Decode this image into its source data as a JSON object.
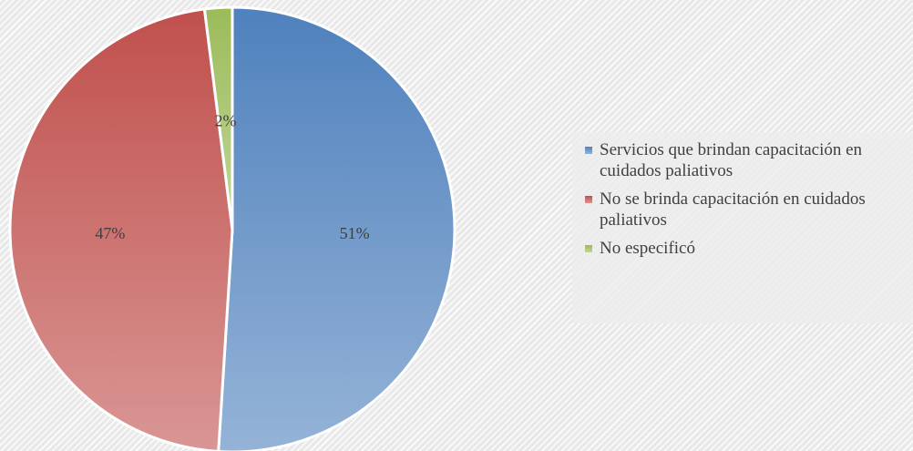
{
  "chart_data": {
    "type": "pie",
    "title": "",
    "start_angle_deg": 0,
    "direction": "clockwise",
    "labels_position": "inside",
    "legend_position": "right",
    "slices": [
      {
        "label": "Servicios que  brindan capacitación en cuidados paliativos",
        "value": 51,
        "value_label": "51%",
        "color_top": "#4f81bd",
        "color_bottom": "#95b3d7"
      },
      {
        "label": "No se brinda capacitación en cuidados paliativos",
        "value": 47,
        "value_label": "47%",
        "color_top": "#c0504d",
        "color_bottom": "#d99694"
      },
      {
        "label": "No especificó",
        "value": 2,
        "value_label": "2%",
        "color_top": "#9bbb59",
        "color_bottom": "#c3d69b"
      }
    ]
  }
}
